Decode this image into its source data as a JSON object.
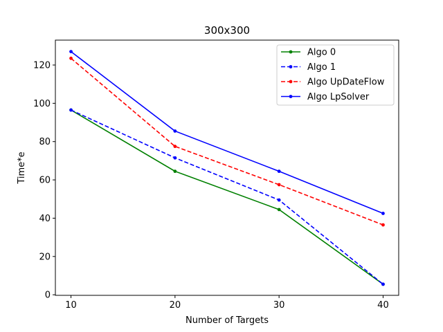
{
  "chart_data": {
    "type": "line",
    "title": "300x300",
    "xlabel": "Number of Targets",
    "ylabel": "Time*e",
    "x": [
      10,
      20,
      30,
      40
    ],
    "xlim": [
      8.5,
      41.5
    ],
    "ylim": [
      -0.3,
      133
    ],
    "xticks": [
      10,
      20,
      30,
      40
    ],
    "yticks": [
      0,
      20,
      40,
      60,
      80,
      100,
      120
    ],
    "grid": false,
    "legend_position": "top-right",
    "series": [
      {
        "name": "Algo 0",
        "values": [
          96.5,
          64.5,
          44.5,
          5.5
        ],
        "color": "#008000",
        "dash": "solid"
      },
      {
        "name": "Algo 1",
        "values": [
          96.5,
          71.5,
          49.5,
          5.5
        ],
        "color": "#0000ff",
        "dash": "dashed"
      },
      {
        "name": "Algo UpDateFlow",
        "values": [
          123.5,
          77.5,
          57.5,
          36.5
        ],
        "color": "#ff0000",
        "dash": "dashed"
      },
      {
        "name": "Algo LpSolver",
        "values": [
          127,
          85.5,
          64.5,
          42.5
        ],
        "color": "#0000ff",
        "dash": "solid"
      }
    ]
  }
}
